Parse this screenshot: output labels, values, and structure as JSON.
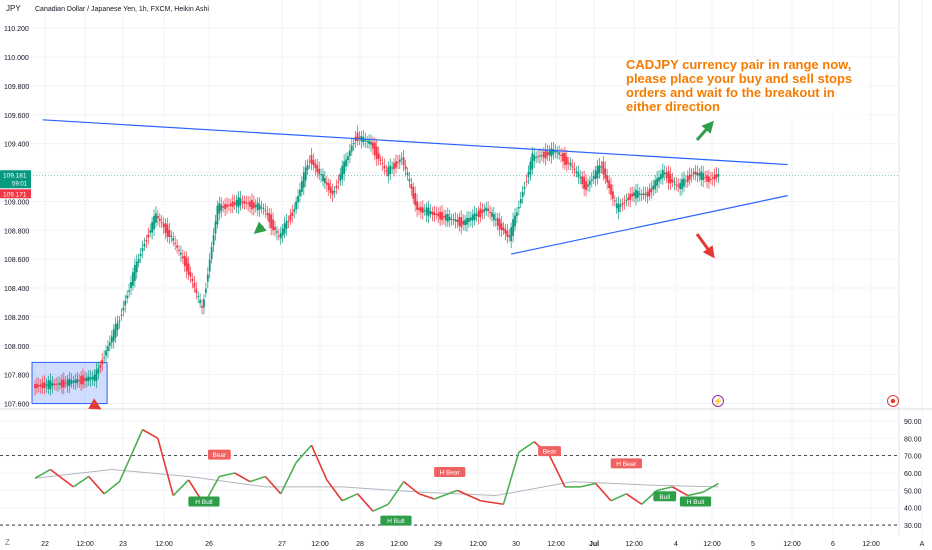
{
  "header": {
    "symbol": "JPY",
    "title": "Canadian Dollar / Japanese Yen, 1h, FXCM, Heikin Ashi"
  },
  "annotation": "CADJPY currency pair in range now, please place your buy and sell stops orders and wait fo the breakout in either direction",
  "price_badges": {
    "last": "109.181",
    "countdown": "59:01",
    "other": "109.171"
  },
  "corner_label": "Z",
  "chart_data": [
    {
      "type": "candlestick",
      "title": "Canadian Dollar / Japanese Yen, 1h, FXCM, Heikin Ashi",
      "y_ticks": [
        "110.200",
        "110.000",
        "109.800",
        "109.600",
        "109.400",
        "109.200",
        "109.000",
        "108.800",
        "108.600",
        "108.400",
        "108.200",
        "108.000",
        "107.800",
        "107.600"
      ],
      "ylim": [
        107.59,
        110.27
      ],
      "last_price": 109.181,
      "x_ticks": [
        "22",
        "12:00",
        "23",
        "12:00",
        "26",
        "27",
        "12:00",
        "28",
        "12:00",
        "29",
        "12:00",
        "30",
        "12:00",
        "Jul",
        "12:00",
        "4",
        "12:00",
        "5",
        "12:00",
        "6",
        "12:00",
        "A"
      ],
      "trendlines": {
        "upper": {
          "start": [
            1,
            109.565
          ],
          "end": [
            98,
            109.255
          ]
        },
        "lower": {
          "start": [
            62,
            108.635
          ],
          "end": [
            98,
            109.04
          ]
        }
      },
      "range_box": {
        "x": [
          0,
          9
        ],
        "y": [
          107.6,
          107.885
        ]
      },
      "arrows": {
        "up": "green",
        "down": "red"
      },
      "path": [
        [
          0,
          107.72
        ],
        [
          4,
          107.74
        ],
        [
          8,
          107.78
        ],
        [
          11,
          108.15
        ],
        [
          14,
          108.65
        ],
        [
          16,
          108.9
        ],
        [
          18,
          108.75
        ],
        [
          20,
          108.55
        ],
        [
          22,
          108.25
        ],
        [
          24,
          108.95
        ],
        [
          27,
          109.0
        ],
        [
          30,
          108.95
        ],
        [
          32,
          108.75
        ],
        [
          34,
          108.95
        ],
        [
          36,
          109.3
        ],
        [
          39,
          109.05
        ],
        [
          42,
          109.45
        ],
        [
          44,
          109.4
        ],
        [
          46,
          109.2
        ],
        [
          48,
          109.3
        ],
        [
          50,
          108.95
        ],
        [
          53,
          108.9
        ],
        [
          56,
          108.85
        ],
        [
          59,
          108.95
        ],
        [
          62,
          108.75
        ],
        [
          65,
          109.3
        ],
        [
          68,
          109.35
        ],
        [
          70,
          109.25
        ],
        [
          72,
          109.1
        ],
        [
          74,
          109.25
        ],
        [
          76,
          108.95
        ],
        [
          78,
          109.05
        ],
        [
          80,
          109.05
        ],
        [
          82,
          109.2
        ],
        [
          84,
          109.1
        ],
        [
          86,
          109.2
        ],
        [
          88,
          109.15
        ],
        [
          89,
          109.18
        ]
      ],
      "colors": {
        "up": "#089981",
        "down": "#f23645"
      }
    },
    {
      "type": "line",
      "y_ticks": [
        "90.00",
        "80.00",
        "70.00",
        "60.00",
        "50.00",
        "40.00",
        "30.00"
      ],
      "ylim": [
        26,
        94
      ],
      "levels": [
        70,
        30
      ],
      "series": [
        {
          "name": "",
          "color_up": "#4caf50",
          "color_down": "#e53935",
          "x": [
            0,
            2,
            5,
            7,
            9,
            11,
            14,
            16,
            18,
            20,
            22,
            24,
            26,
            28,
            30,
            32,
            34,
            36,
            38,
            40,
            42,
            44,
            46,
            48,
            50,
            52,
            55,
            58,
            61,
            63,
            65,
            67,
            69,
            71,
            73,
            75,
            77,
            79,
            81,
            83,
            85,
            87,
            89
          ],
          "y": [
            57,
            62,
            52,
            58,
            48,
            55,
            85,
            80,
            47,
            56,
            42,
            58,
            60,
            55,
            58,
            48,
            66,
            76,
            56,
            44,
            48,
            38,
            42,
            55,
            48,
            45,
            50,
            44,
            42,
            72,
            78,
            70,
            52,
            52,
            54,
            44,
            48,
            42,
            50,
            52,
            47,
            49,
            54
          ]
        },
        {
          "name": "",
          "color": "#b2b5be",
          "x": [
            0,
            10,
            20,
            30,
            40,
            50,
            60,
            70,
            80,
            89
          ],
          "y": [
            57,
            62,
            58,
            52,
            52,
            49,
            47,
            55,
            53,
            52
          ]
        }
      ],
      "labels": [
        {
          "text": "Bear",
          "x": 24,
          "y": 70,
          "kind": "bear"
        },
        {
          "text": "H Bull",
          "x": 22,
          "y": 43,
          "kind": "bull"
        },
        {
          "text": "H Bear",
          "x": 54,
          "y": 60,
          "kind": "bear"
        },
        {
          "text": "H Bull",
          "x": 47,
          "y": 32,
          "kind": "bull"
        },
        {
          "text": "Bear",
          "x": 67,
          "y": 72,
          "kind": "bear"
        },
        {
          "text": "H Bear",
          "x": 77,
          "y": 65,
          "kind": "bear"
        },
        {
          "text": "Bull",
          "x": 82,
          "y": 46,
          "kind": "bull"
        },
        {
          "text": "H Bull",
          "x": 86,
          "y": 43,
          "kind": "bull"
        }
      ]
    }
  ]
}
